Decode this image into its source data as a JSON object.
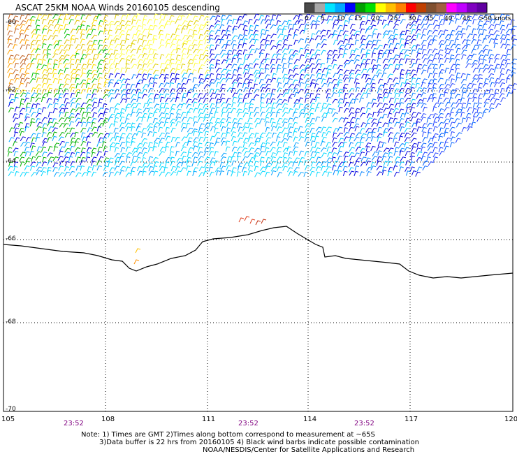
{
  "title": "ASCAT 25KM NOAA Winds 20160105 descending",
  "legend": {
    "labels": [
      "0",
      "5",
      "10",
      "15",
      "20",
      "25",
      "30",
      "35",
      "40",
      "45",
      ">50 knots"
    ],
    "colors": [
      "#4a4a4a",
      "#a8a8a8",
      "#00e5ff",
      "#00a8ff",
      "#0000ff",
      "#00a000",
      "#00e000",
      "#ffff00",
      "#ffc000",
      "#ff8000",
      "#ff0000",
      "#c04000",
      "#805030",
      "#a06040",
      "#ff00ff",
      "#c000ff",
      "#8000c0",
      "#6000a0"
    ]
  },
  "lat_labels": [
    "-60",
    "-62",
    "-64",
    "-66",
    "-68",
    "-70"
  ],
  "lon_labels": [
    "105",
    "108",
    "111",
    "114",
    "117",
    "120"
  ],
  "time_labels": [
    "23:52",
    "23:52",
    "23:52"
  ],
  "notes": [
    "Note: 1) Times are GMT 2)Times along bottom correspond to measurement at ~65S",
    "3)Data buffer is 22 hrs from 20160105 4) Black wind barbs indicate possible contamination",
    "NOAA/NESDIS/Center for Satellite Applications and Research"
  ]
}
